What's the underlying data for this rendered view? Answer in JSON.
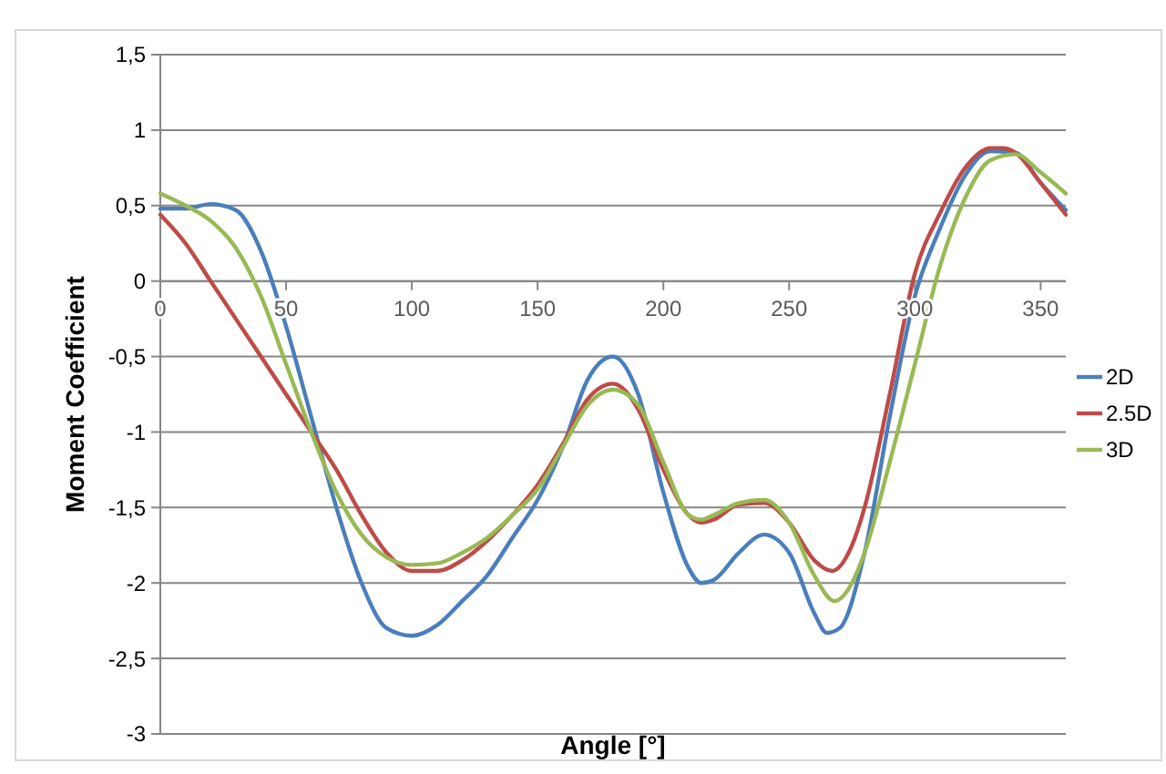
{
  "chart_data": {
    "type": "line",
    "xlabel": "Angle [°]",
    "ylabel": "Moment Coefficient",
    "xlim": [
      0,
      360
    ],
    "xticks": [
      0,
      50,
      100,
      150,
      200,
      250,
      300,
      350
    ],
    "ylim": [
      -3,
      1.5
    ],
    "yticks": [
      {
        "value": 1.5,
        "label": "1,5"
      },
      {
        "value": 1,
        "label": "1"
      },
      {
        "value": 0.5,
        "label": "0,5"
      },
      {
        "value": 0,
        "label": "0"
      },
      {
        "value": -0.5,
        "label": "-0,5"
      },
      {
        "value": -1,
        "label": "-1"
      },
      {
        "value": -1.5,
        "label": "-1,5"
      },
      {
        "value": -2,
        "label": "-2"
      },
      {
        "value": -2.5,
        "label": "-2,5"
      },
      {
        "value": -3,
        "label": "-3"
      }
    ],
    "grid": "y",
    "legend": "right",
    "marker": "none",
    "line_style": "solid",
    "series": [
      {
        "name": "2D",
        "color": "#4a7ebb",
        "x": [
          0,
          10,
          20,
          30,
          40,
          50,
          60,
          70,
          80,
          90,
          100,
          110,
          120,
          130,
          140,
          150,
          160,
          170,
          180,
          190,
          200,
          210,
          215,
          220,
          230,
          240,
          250,
          260,
          265,
          270,
          280,
          290,
          300,
          310,
          320,
          330,
          340,
          350,
          360
        ],
        "values": [
          0.48,
          0.48,
          0.51,
          0.47,
          0.2,
          -0.3,
          -0.9,
          -1.5,
          -2.0,
          -2.3,
          -2.35,
          -2.28,
          -2.12,
          -1.95,
          -1.7,
          -1.45,
          -1.1,
          -0.65,
          -0.5,
          -0.75,
          -1.4,
          -1.9,
          -2.0,
          -1.98,
          -1.8,
          -1.68,
          -1.8,
          -2.2,
          -2.33,
          -2.3,
          -1.8,
          -0.9,
          -0.1,
          0.35,
          0.7,
          0.86,
          0.85,
          0.65,
          0.47
        ]
      },
      {
        "name": "2.5D",
        "color": "#be4b48",
        "x": [
          0,
          10,
          20,
          30,
          40,
          50,
          60,
          70,
          80,
          90,
          100,
          110,
          120,
          130,
          140,
          150,
          160,
          170,
          180,
          190,
          200,
          210,
          215,
          220,
          230,
          240,
          250,
          260,
          267,
          275,
          280,
          290,
          300,
          310,
          320,
          330,
          335,
          340,
          350,
          360
        ],
        "values": [
          0.44,
          0.25,
          0.0,
          -0.25,
          -0.5,
          -0.75,
          -1.0,
          -1.25,
          -1.55,
          -1.8,
          -1.92,
          -1.92,
          -1.85,
          -1.72,
          -1.55,
          -1.35,
          -1.08,
          -0.78,
          -0.68,
          -0.85,
          -1.25,
          -1.55,
          -1.6,
          -1.58,
          -1.48,
          -1.47,
          -1.6,
          -1.85,
          -1.92,
          -1.75,
          -1.5,
          -0.75,
          0.05,
          0.45,
          0.75,
          0.88,
          0.88,
          0.85,
          0.65,
          0.44
        ]
      },
      {
        "name": "3D",
        "color": "#98b954",
        "x": [
          0,
          10,
          20,
          30,
          40,
          50,
          60,
          70,
          80,
          90,
          100,
          110,
          120,
          130,
          140,
          150,
          160,
          170,
          180,
          190,
          200,
          210,
          215,
          220,
          230,
          240,
          250,
          260,
          268,
          275,
          280,
          290,
          300,
          310,
          320,
          330,
          340,
          350,
          360
        ],
        "values": [
          0.58,
          0.5,
          0.4,
          0.22,
          -0.1,
          -0.55,
          -1.0,
          -1.4,
          -1.68,
          -1.83,
          -1.88,
          -1.87,
          -1.8,
          -1.7,
          -1.55,
          -1.38,
          -1.1,
          -0.82,
          -0.72,
          -0.82,
          -1.2,
          -1.55,
          -1.58,
          -1.55,
          -1.47,
          -1.45,
          -1.6,
          -1.95,
          -2.12,
          -2.0,
          -1.8,
          -1.2,
          -0.55,
          0.1,
          0.55,
          0.8,
          0.84,
          0.72,
          0.58
        ]
      }
    ]
  }
}
